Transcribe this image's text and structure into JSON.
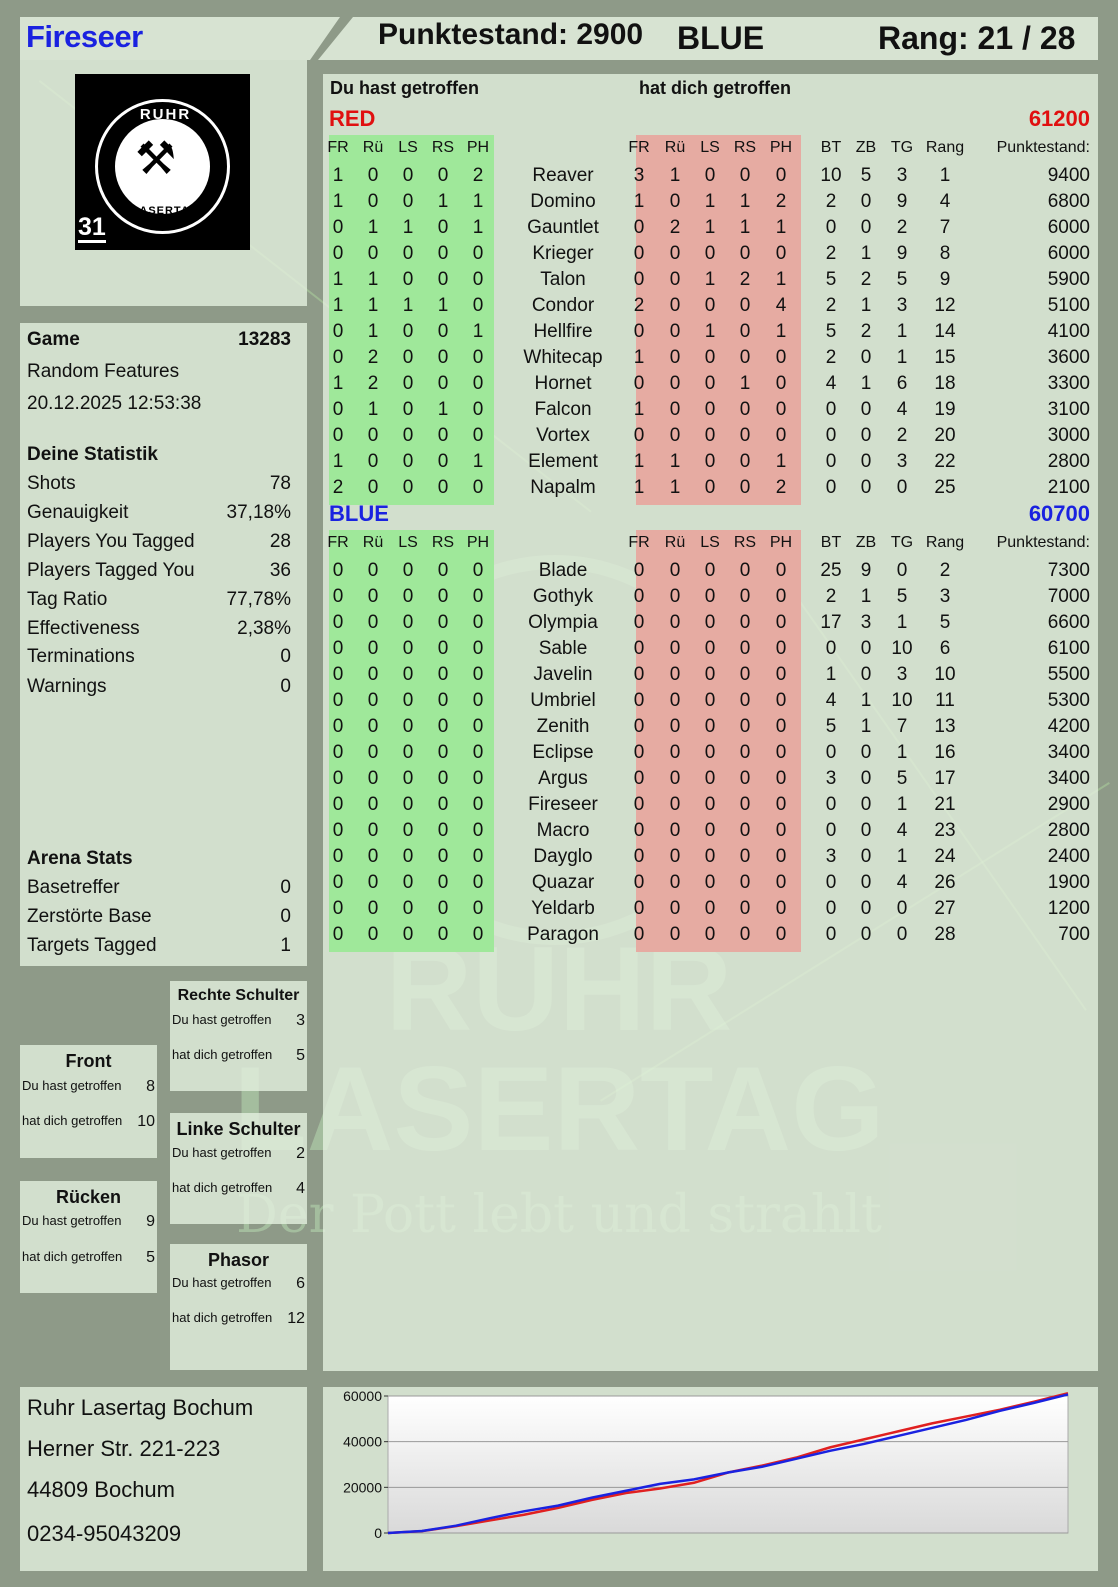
{
  "header": {
    "player_name": "Fireseer",
    "score_text": "Punktestand: 2900",
    "team": "BLUE",
    "rank_text": "Rang: 21 / 28"
  },
  "logo": {
    "ruhr": "RUHR",
    "lasertag": "LASERTAG",
    "number": "31"
  },
  "watermark": {
    "line1": "RUHR",
    "line2": "LASERTAG",
    "line3": "Der Pott lebt und strahlt"
  },
  "game": {
    "label": "Game",
    "id": "13283",
    "mode": "Random Features",
    "datetime": "20.12.2025 12:53:38"
  },
  "stats": {
    "title": "Deine Statistik",
    "rows": [
      {
        "label": "Shots",
        "value": "78"
      },
      {
        "label": "Genauigkeit",
        "value": "37,18%"
      },
      {
        "label": "Players You Tagged",
        "value": "28"
      },
      {
        "label": "Players Tagged You",
        "value": "36"
      },
      {
        "label": "Tag Ratio",
        "value": "77,78%"
      },
      {
        "label": "Effectiveness",
        "value": "2,38%"
      },
      {
        "label": "Terminations",
        "value": "0"
      },
      {
        "label": "Warnings",
        "value": "0"
      }
    ]
  },
  "arena": {
    "title": "Arena Stats",
    "rows": [
      {
        "label": "Basetreffer",
        "value": "0"
      },
      {
        "label": "Zerstörte Base",
        "value": "0"
      },
      {
        "label": "Targets Tagged",
        "value": "1"
      }
    ]
  },
  "hitzones": {
    "you_hit": "Du hast getroffen",
    "hit_you": "hat dich getroffen",
    "rechte": {
      "title": "Rechte Schulter",
      "you_hit": "3",
      "hit_you": "5"
    },
    "front": {
      "title": "Front",
      "you_hit": "8",
      "hit_you": "10"
    },
    "linke": {
      "title": "Linke Schulter",
      "you_hit": "2",
      "hit_you": "4"
    },
    "ruecken": {
      "title": "Rücken",
      "you_hit": "9",
      "hit_you": "5"
    },
    "phasor": {
      "title": "Phasor",
      "you_hit": "6",
      "hit_you": "12"
    }
  },
  "table": {
    "you_hit_header": "Du hast getroffen",
    "hit_you_header": "hat dich getroffen",
    "cols_hit": [
      "FR",
      "Rü",
      "LS",
      "RS",
      "PH"
    ],
    "cols_extra": [
      "BT",
      "ZB",
      "TG",
      "Rang",
      "Punktestand:"
    ],
    "teams": [
      {
        "name": "RED",
        "color": "#e01010",
        "score": "61200",
        "players": [
          {
            "given": [
              "1",
              "0",
              "0",
              "0",
              "2"
            ],
            "name": "Reaver",
            "taken": [
              "3",
              "1",
              "0",
              "0",
              "0"
            ],
            "extra": [
              "10",
              "5",
              "3",
              "1",
              "9400"
            ]
          },
          {
            "given": [
              "1",
              "0",
              "0",
              "1",
              "1"
            ],
            "name": "Domino",
            "taken": [
              "1",
              "0",
              "1",
              "1",
              "2"
            ],
            "extra": [
              "2",
              "0",
              "9",
              "4",
              "6800"
            ]
          },
          {
            "given": [
              "0",
              "1",
              "1",
              "0",
              "1"
            ],
            "name": "Gauntlet",
            "taken": [
              "0",
              "2",
              "1",
              "1",
              "1"
            ],
            "extra": [
              "0",
              "0",
              "2",
              "7",
              "6000"
            ]
          },
          {
            "given": [
              "0",
              "0",
              "0",
              "0",
              "0"
            ],
            "name": "Krieger",
            "taken": [
              "0",
              "0",
              "0",
              "0",
              "0"
            ],
            "extra": [
              "2",
              "1",
              "9",
              "8",
              "6000"
            ]
          },
          {
            "given": [
              "1",
              "1",
              "0",
              "0",
              "0"
            ],
            "name": "Talon",
            "taken": [
              "0",
              "0",
              "1",
              "2",
              "1"
            ],
            "extra": [
              "5",
              "2",
              "5",
              "9",
              "5900"
            ]
          },
          {
            "given": [
              "1",
              "1",
              "1",
              "1",
              "0"
            ],
            "name": "Condor",
            "taken": [
              "2",
              "0",
              "0",
              "0",
              "4"
            ],
            "extra": [
              "2",
              "1",
              "3",
              "12",
              "5100"
            ]
          },
          {
            "given": [
              "0",
              "1",
              "0",
              "0",
              "1"
            ],
            "name": "Hellfire",
            "taken": [
              "0",
              "0",
              "1",
              "0",
              "1"
            ],
            "extra": [
              "5",
              "2",
              "1",
              "14",
              "4100"
            ]
          },
          {
            "given": [
              "0",
              "2",
              "0",
              "0",
              "0"
            ],
            "name": "Whitecap",
            "taken": [
              "1",
              "0",
              "0",
              "0",
              "0"
            ],
            "extra": [
              "2",
              "0",
              "1",
              "15",
              "3600"
            ]
          },
          {
            "given": [
              "1",
              "2",
              "0",
              "0",
              "0"
            ],
            "name": "Hornet",
            "taken": [
              "0",
              "0",
              "0",
              "1",
              "0"
            ],
            "extra": [
              "4",
              "1",
              "6",
              "18",
              "3300"
            ]
          },
          {
            "given": [
              "0",
              "1",
              "0",
              "1",
              "0"
            ],
            "name": "Falcon",
            "taken": [
              "1",
              "0",
              "0",
              "0",
              "0"
            ],
            "extra": [
              "0",
              "0",
              "4",
              "19",
              "3100"
            ]
          },
          {
            "given": [
              "0",
              "0",
              "0",
              "0",
              "0"
            ],
            "name": "Vortex",
            "taken": [
              "0",
              "0",
              "0",
              "0",
              "0"
            ],
            "extra": [
              "0",
              "0",
              "2",
              "20",
              "3000"
            ]
          },
          {
            "given": [
              "1",
              "0",
              "0",
              "0",
              "1"
            ],
            "name": "Element",
            "taken": [
              "1",
              "1",
              "0",
              "0",
              "1"
            ],
            "extra": [
              "0",
              "0",
              "3",
              "22",
              "2800"
            ]
          },
          {
            "given": [
              "2",
              "0",
              "0",
              "0",
              "0"
            ],
            "name": "Napalm",
            "taken": [
              "1",
              "1",
              "0",
              "0",
              "2"
            ],
            "extra": [
              "0",
              "0",
              "0",
              "25",
              "2100"
            ]
          }
        ]
      },
      {
        "name": "BLUE",
        "color": "#1a22e0",
        "score": "60700",
        "players": [
          {
            "given": [
              "0",
              "0",
              "0",
              "0",
              "0"
            ],
            "name": "Blade",
            "taken": [
              "0",
              "0",
              "0",
              "0",
              "0"
            ],
            "extra": [
              "25",
              "9",
              "0",
              "2",
              "7300"
            ]
          },
          {
            "given": [
              "0",
              "0",
              "0",
              "0",
              "0"
            ],
            "name": "Gothyk",
            "taken": [
              "0",
              "0",
              "0",
              "0",
              "0"
            ],
            "extra": [
              "2",
              "1",
              "5",
              "3",
              "7000"
            ]
          },
          {
            "given": [
              "0",
              "0",
              "0",
              "0",
              "0"
            ],
            "name": "Olympia",
            "taken": [
              "0",
              "0",
              "0",
              "0",
              "0"
            ],
            "extra": [
              "17",
              "3",
              "1",
              "5",
              "6600"
            ]
          },
          {
            "given": [
              "0",
              "0",
              "0",
              "0",
              "0"
            ],
            "name": "Sable",
            "taken": [
              "0",
              "0",
              "0",
              "0",
              "0"
            ],
            "extra": [
              "0",
              "0",
              "10",
              "6",
              "6100"
            ]
          },
          {
            "given": [
              "0",
              "0",
              "0",
              "0",
              "0"
            ],
            "name": "Javelin",
            "taken": [
              "0",
              "0",
              "0",
              "0",
              "0"
            ],
            "extra": [
              "1",
              "0",
              "3",
              "10",
              "5500"
            ]
          },
          {
            "given": [
              "0",
              "0",
              "0",
              "0",
              "0"
            ],
            "name": "Umbriel",
            "taken": [
              "0",
              "0",
              "0",
              "0",
              "0"
            ],
            "extra": [
              "4",
              "1",
              "10",
              "11",
              "5300"
            ]
          },
          {
            "given": [
              "0",
              "0",
              "0",
              "0",
              "0"
            ],
            "name": "Zenith",
            "taken": [
              "0",
              "0",
              "0",
              "0",
              "0"
            ],
            "extra": [
              "5",
              "1",
              "7",
              "13",
              "4200"
            ]
          },
          {
            "given": [
              "0",
              "0",
              "0",
              "0",
              "0"
            ],
            "name": "Eclipse",
            "taken": [
              "0",
              "0",
              "0",
              "0",
              "0"
            ],
            "extra": [
              "0",
              "0",
              "1",
              "16",
              "3400"
            ]
          },
          {
            "given": [
              "0",
              "0",
              "0",
              "0",
              "0"
            ],
            "name": "Argus",
            "taken": [
              "0",
              "0",
              "0",
              "0",
              "0"
            ],
            "extra": [
              "3",
              "0",
              "5",
              "17",
              "3400"
            ]
          },
          {
            "given": [
              "0",
              "0",
              "0",
              "0",
              "0"
            ],
            "name": "Fireseer",
            "taken": [
              "0",
              "0",
              "0",
              "0",
              "0"
            ],
            "extra": [
              "0",
              "0",
              "1",
              "21",
              "2900"
            ]
          },
          {
            "given": [
              "0",
              "0",
              "0",
              "0",
              "0"
            ],
            "name": "Macro",
            "taken": [
              "0",
              "0",
              "0",
              "0",
              "0"
            ],
            "extra": [
              "0",
              "0",
              "4",
              "23",
              "2800"
            ]
          },
          {
            "given": [
              "0",
              "0",
              "0",
              "0",
              "0"
            ],
            "name": "Dayglo",
            "taken": [
              "0",
              "0",
              "0",
              "0",
              "0"
            ],
            "extra": [
              "3",
              "0",
              "1",
              "24",
              "2400"
            ]
          },
          {
            "given": [
              "0",
              "0",
              "0",
              "0",
              "0"
            ],
            "name": "Quazar",
            "taken": [
              "0",
              "0",
              "0",
              "0",
              "0"
            ],
            "extra": [
              "0",
              "0",
              "4",
              "26",
              "1900"
            ]
          },
          {
            "given": [
              "0",
              "0",
              "0",
              "0",
              "0"
            ],
            "name": "Yeldarb",
            "taken": [
              "0",
              "0",
              "0",
              "0",
              "0"
            ],
            "extra": [
              "0",
              "0",
              "0",
              "27",
              "1200"
            ]
          },
          {
            "given": [
              "0",
              "0",
              "0",
              "0",
              "0"
            ],
            "name": "Paragon",
            "taken": [
              "0",
              "0",
              "0",
              "0",
              "0"
            ],
            "extra": [
              "0",
              "0",
              "0",
              "28",
              "700"
            ]
          }
        ]
      }
    ]
  },
  "address": {
    "line1": "Ruhr Lasertag Bochum",
    "line2": "Herner Str. 221-223",
    "line3": "44809 Bochum",
    "line4": "0234-95043209"
  },
  "chart_data": {
    "type": "line",
    "title": "",
    "xlabel": "",
    "ylabel": "",
    "ylim": [
      0,
      60000
    ],
    "yticks": [
      "0",
      "20000",
      "40000",
      "60000"
    ],
    "x": [
      0,
      0.05,
      0.1,
      0.15,
      0.2,
      0.25,
      0.3,
      0.35,
      0.4,
      0.45,
      0.5,
      0.55,
      0.6,
      0.65,
      0.7,
      0.75,
      0.8,
      0.85,
      0.9,
      0.95,
      1.0
    ],
    "series": [
      {
        "color": "#e02020",
        "values": [
          0,
          800,
          3000,
          5500,
          8000,
          11000,
          14500,
          17500,
          19500,
          22000,
          26500,
          29500,
          33000,
          37500,
          41000,
          44500,
          48000,
          51000,
          54000,
          57500,
          61200
        ]
      },
      {
        "color": "#1a22e0",
        "values": [
          0,
          900,
          3200,
          6500,
          9500,
          12000,
          15500,
          18500,
          21500,
          23500,
          26500,
          29000,
          32500,
          36000,
          39000,
          42500,
          46000,
          49500,
          53500,
          57000,
          60700
        ]
      }
    ],
    "grid": true
  }
}
